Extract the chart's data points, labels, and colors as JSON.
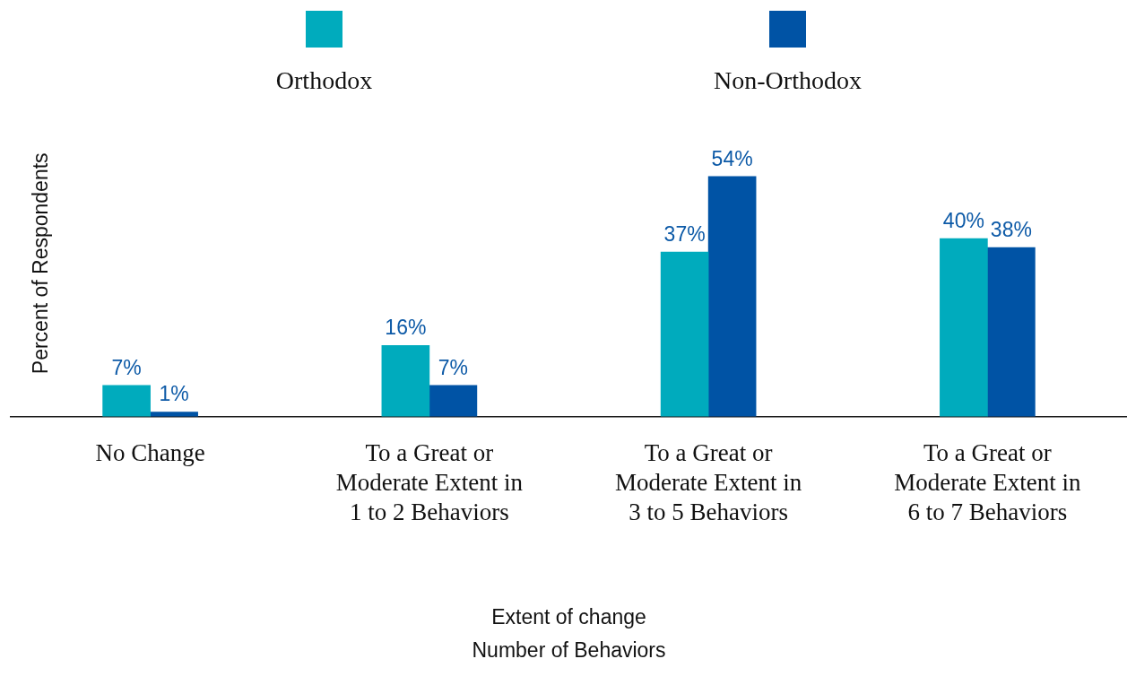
{
  "chart_data": {
    "type": "bar",
    "categories": [
      "No Change",
      "To a Great or Moderate Extent in 1 to 2 Behaviors",
      "To a Great or Moderate Extent in 3 to 5 Behaviors",
      "To a Great or Moderate Extent in 6 to 7 Behaviors"
    ],
    "series": [
      {
        "name": "Orthodox",
        "color": "#00abbd",
        "values": [
          7,
          16,
          37,
          40
        ],
        "value_labels": [
          "7%",
          "16%",
          "37%",
          "40%"
        ]
      },
      {
        "name": "Non-Orthodox",
        "color": "#0053a5",
        "values": [
          1,
          7,
          54,
          38
        ],
        "value_labels": [
          "1%",
          "7%",
          "54%",
          "38%"
        ]
      }
    ],
    "xlabel": "Extent of change\nNumber of Behaviors",
    "ylabel": "Percent of Respondents",
    "legend": "top",
    "tick_labels": "x"
  }
}
